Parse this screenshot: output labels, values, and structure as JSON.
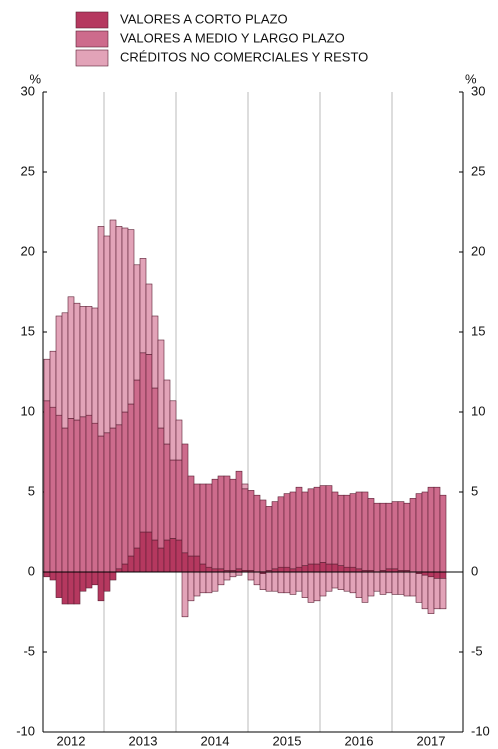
{
  "chart_data": {
    "type": "stacked-bar",
    "y_unit": "%",
    "y2_unit": "%",
    "categories": [
      null,
      null,
      null,
      null,
      "2012",
      null,
      null,
      null,
      null,
      null,
      null,
      null,
      null,
      null,
      null,
      null,
      "2013",
      null,
      null,
      null,
      null,
      null,
      null,
      null,
      null,
      null,
      null,
      null,
      "2014",
      null,
      null,
      null,
      null,
      null,
      null,
      null,
      null,
      null,
      null,
      null,
      "2015",
      null,
      null,
      null,
      null,
      null,
      null,
      null,
      null,
      null,
      null,
      null,
      "2016",
      null,
      null,
      null,
      null,
      null,
      null,
      null,
      null,
      null,
      null,
      null,
      "2017",
      null,
      null
    ],
    "series": [
      {
        "name": "VALORES A CORTO PLAZO",
        "color": "#b5385f",
        "values": [
          -0.3,
          -0.5,
          -1.6,
          -2.0,
          -2.0,
          -2.0,
          -1.2,
          -1.0,
          -0.8,
          -1.8,
          -1.2,
          -0.5,
          0.2,
          0.5,
          1.0,
          1.5,
          2.5,
          2.5,
          2.0,
          1.5,
          2.0,
          2.1,
          2.0,
          1.2,
          1.0,
          1.0,
          0.5,
          0.3,
          0.2,
          0.2,
          0.1,
          0.1,
          0.2,
          0.1,
          0.1,
          0.0,
          -0.1,
          0.1,
          0.2,
          0.3,
          0.3,
          0.2,
          0.3,
          0.4,
          0.5,
          0.5,
          0.6,
          0.5,
          0.5,
          0.4,
          0.3,
          0.3,
          0.2,
          0.1,
          0.1,
          0.0,
          0.1,
          0.2,
          0.2,
          0.1,
          0.1,
          0.0,
          -0.1,
          -0.2,
          -0.3,
          -0.4,
          -0.4
        ]
      },
      {
        "name": "VALORES A MEDIO Y LARGO PLAZO",
        "color": "#cd6b8c",
        "values": [
          10.7,
          10.3,
          9.8,
          9.0,
          9.6,
          9.5,
          9.7,
          9.8,
          9.3,
          8.5,
          8.7,
          9.0,
          9.0,
          9.5,
          9.5,
          10.5,
          11.2,
          11.1,
          9.5,
          7.5,
          6.0,
          4.9,
          5.0,
          6.8,
          5.0,
          4.5,
          5.0,
          5.2,
          5.6,
          5.8,
          5.9,
          5.7,
          6.1,
          5.1,
          5.0,
          4.8,
          4.5,
          4.0,
          4.2,
          4.4,
          4.6,
          4.8,
          5.0,
          4.6,
          4.7,
          4.8,
          4.8,
          4.9,
          4.5,
          4.4,
          4.5,
          4.6,
          4.8,
          4.9,
          4.5,
          4.3,
          4.2,
          4.1,
          4.2,
          4.3,
          4.2,
          4.6,
          4.9,
          5.0,
          5.3,
          5.3,
          4.8
        ]
      },
      {
        "name": "CRÉDITOS NO COMERCIALES Y RESTO",
        "color": "#e2a3b8",
        "values": [
          2.6,
          3.5,
          6.2,
          7.2,
          7.6,
          7.3,
          6.9,
          6.8,
          7.2,
          13.1,
          12.3,
          13.0,
          12.4,
          11.5,
          10.9,
          7.2,
          5.9,
          4.4,
          4.5,
          5.5,
          4.0,
          3.7,
          2.5,
          -2.8,
          -1.8,
          -1.5,
          -1.3,
          -1.3,
          -1.2,
          -0.8,
          -0.5,
          -0.3,
          -0.2,
          0.3,
          -0.5,
          -0.8,
          -1.0,
          -1.2,
          -1.2,
          -1.3,
          -1.3,
          -1.4,
          -1.2,
          -1.6,
          -1.9,
          -1.8,
          -1.5,
          -1.2,
          -1.0,
          -1.1,
          -1.2,
          -1.3,
          -1.6,
          -1.9,
          -1.5,
          -1.2,
          -1.4,
          -1.3,
          -1.4,
          -1.4,
          -1.5,
          -1.5,
          -1.8,
          -2.1,
          -2.3,
          -1.9,
          -1.9
        ]
      }
    ],
    "ylim": [
      -10,
      30
    ],
    "yticks": [
      -10,
      -5,
      0,
      5,
      10,
      15,
      20,
      25,
      30
    ],
    "y2lim": [
      -10,
      30
    ],
    "y2ticks": [
      -10,
      -5,
      0,
      5,
      10,
      15,
      20,
      25,
      30
    ],
    "grid": true,
    "legend": "top-left"
  }
}
